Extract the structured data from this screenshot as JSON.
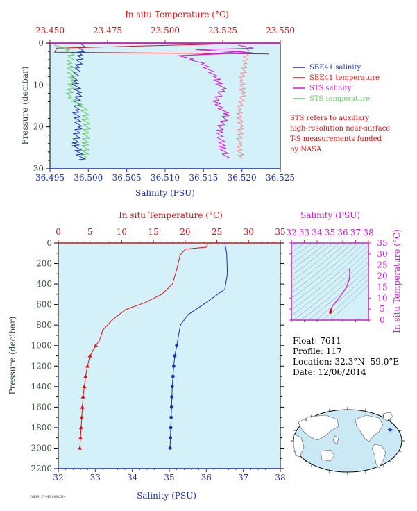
{
  "colors": {
    "salinity": "#1c2fb5",
    "temperature": "#e01010",
    "sts_salinity": "#d21ad2",
    "sts_temperature": "#66cc66",
    "sts_temp_line": "#f08a8a",
    "panel_bg": "#d4f0f8",
    "pressure_axis": "#334d33",
    "map_land": "#ffffff",
    "map_ocean": "#cbe8f5"
  },
  "chart_data": [
    {
      "type": "line",
      "title": "",
      "x_top_label": "In situ Temperature (°C)",
      "x_top_ticks": [
        "23.450",
        "23.475",
        "23.500",
        "23.525",
        "23.550"
      ],
      "x_top_range": [
        23.45,
        23.55
      ],
      "x_bottom_label": "Salinity (PSU)",
      "x_bottom_ticks": [
        "36.495",
        "36.500",
        "36.505",
        "36.510",
        "36.515",
        "36.520",
        "36.525"
      ],
      "x_bottom_range": [
        36.495,
        36.525
      ],
      "y_label": "Pressure (decibar)",
      "y_ticks": [
        "0",
        "10",
        "20",
        "30"
      ],
      "y_range": [
        0,
        30
      ],
      "y_inverted": true,
      "legend_position": "right",
      "legend": [
        "SBE41 salinity",
        "SBE41 temperature",
        "STS salinity",
        "STS temperature"
      ],
      "note": [
        "STS refers to auxiliary",
        "high-resolution near-surface",
        "T-S measurements funded",
        "by NASA."
      ],
      "series": [
        {
          "name": "SBE41 salinity",
          "axis": "salinity",
          "points": [
            [
              36.4993,
              0
            ],
            [
              36.499,
              3
            ],
            [
              36.4986,
              6
            ],
            [
              36.4982,
              9
            ],
            [
              36.4987,
              12
            ],
            [
              36.4984,
              16
            ],
            [
              36.4987,
              20
            ],
            [
              36.4983,
              24
            ],
            [
              36.4992,
              28
            ]
          ]
        },
        {
          "name": "SBE41 temperature",
          "axis": "temperature",
          "points": [
            [
              23.541,
              0
            ],
            [
              23.453,
              1.2
            ],
            [
              23.452,
              2.2
            ],
            [
              23.545,
              2.6
            ]
          ]
        },
        {
          "name": "STS salinity",
          "axis": "salinity",
          "points": [
            [
              36.521,
              1.0
            ],
            [
              36.5205,
              2.0
            ],
            [
              36.512,
              3.0
            ],
            [
              36.515,
              5.0
            ],
            [
              36.5165,
              8.0
            ],
            [
              36.5175,
              11.0
            ],
            [
              36.5165,
              14.0
            ],
            [
              36.518,
              17.0
            ],
            [
              36.517,
              21.0
            ],
            [
              36.5175,
              25.0
            ],
            [
              36.518,
              27.5
            ]
          ]
        },
        {
          "name": "STS temperature",
          "axis": "salinity",
          "points": [
            [
              36.496,
              0.5
            ],
            [
              36.4978,
              2.0
            ],
            [
              36.4976,
              5.0
            ],
            [
              36.4979,
              9.0
            ],
            [
              36.4975,
              13.0
            ],
            [
              36.4995,
              15.5
            ],
            [
              36.4998,
              20.0
            ],
            [
              36.4996,
              24.0
            ],
            [
              36.4996,
              27.5
            ]
          ]
        },
        {
          "name": "STS temperature (in situ)",
          "axis": "temperature",
          "points": [
            [
              23.535,
              2.0
            ],
            [
              23.535,
              5.0
            ],
            [
              23.533,
              9.0
            ],
            [
              23.534,
              12.0
            ],
            [
              23.532,
              16.0
            ],
            [
              23.533,
              20.0
            ],
            [
              23.532,
              24.0
            ],
            [
              23.533,
              27.5
            ]
          ]
        }
      ]
    },
    {
      "type": "line",
      "title": "",
      "x_top_label": "In situ Temperature (°C)",
      "x_top_ticks": [
        "0",
        "5",
        "10",
        "15",
        "20",
        "25",
        "30",
        "35"
      ],
      "x_top_range": [
        0,
        35
      ],
      "x_bottom_label": "Salinity (PSU)",
      "x_bottom_ticks": [
        "32",
        "33",
        "34",
        "35",
        "36",
        "37",
        "38"
      ],
      "x_bottom_range": [
        32,
        38
      ],
      "y_label": "Pressure (decibar)",
      "y_ticks": [
        "0",
        "200",
        "400",
        "600",
        "800",
        "1000",
        "1200",
        "1400",
        "1600",
        "1800",
        "2000",
        "2200"
      ],
      "y_range": [
        0,
        2200
      ],
      "y_inverted": true,
      "series": [
        {
          "name": "Temperature",
          "axis": "temperature",
          "points": [
            [
              23.5,
              0
            ],
            [
              23.4,
              40
            ],
            [
              20.0,
              60
            ],
            [
              19.2,
              120
            ],
            [
              18.7,
              250
            ],
            [
              18.0,
              400
            ],
            [
              16.3,
              500
            ],
            [
              13.7,
              580
            ],
            [
              10.6,
              650
            ],
            [
              8.5,
              750
            ],
            [
              7.0,
              850
            ],
            [
              6.5,
              950
            ],
            [
              5.9,
              1000
            ],
            [
              5.0,
              1100
            ],
            [
              4.6,
              1200
            ],
            [
              4.3,
              1300
            ],
            [
              4.1,
              1400
            ],
            [
              3.9,
              1500
            ],
            [
              3.8,
              1600
            ],
            [
              3.7,
              1700
            ],
            [
              3.6,
              1800
            ],
            [
              3.5,
              1900
            ],
            [
              3.4,
              2000
            ]
          ]
        },
        {
          "name": "Salinity",
          "axis": "salinity",
          "points": [
            [
              36.5,
              0
            ],
            [
              36.55,
              100
            ],
            [
              36.57,
              300
            ],
            [
              36.5,
              450
            ],
            [
              36.0,
              580
            ],
            [
              35.5,
              700
            ],
            [
              35.3,
              800
            ],
            [
              35.2,
              1000
            ],
            [
              35.15,
              1100
            ],
            [
              35.12,
              1200
            ],
            [
              35.1,
              1300
            ],
            [
              35.08,
              1400
            ],
            [
              35.07,
              1500
            ],
            [
              35.06,
              1600
            ],
            [
              35.05,
              1700
            ],
            [
              35.04,
              1800
            ],
            [
              35.03,
              1900
            ],
            [
              35.02,
              2000
            ]
          ]
        }
      ]
    },
    {
      "type": "line",
      "title": "",
      "x_top_label": "Salinity (PSU)",
      "x_top_ticks": [
        "32",
        "33",
        "34",
        "35",
        "36",
        "37",
        "38"
      ],
      "x_top_range": [
        32,
        38
      ],
      "y_right_label": "In situ Temperature (°C)",
      "y_right_ticks": [
        "0",
        "5",
        "10",
        "15",
        "20",
        "25",
        "30",
        "35"
      ],
      "y_range": [
        0,
        35
      ],
      "series": [
        {
          "name": "T-S",
          "points": [
            [
              35.03,
              3.4
            ],
            [
              35.07,
              4.6
            ],
            [
              35.2,
              6.5
            ],
            [
              35.5,
              8.5
            ],
            [
              35.9,
              11.5
            ],
            [
              36.3,
              15.0
            ],
            [
              36.5,
              18.5
            ],
            [
              36.55,
              21.0
            ],
            [
              36.5,
              23.5
            ]
          ]
        }
      ]
    }
  ],
  "float_info": {
    "float": "Float:  7611",
    "profile": "Profile:  117",
    "location": "Location:  32.3°N  -59.0°E",
    "date": "Date:  12/06/2014"
  },
  "map": {
    "marker_lat": 32.3,
    "marker_lon": -59.0
  },
  "footer_code": "AS09137443 0092614"
}
